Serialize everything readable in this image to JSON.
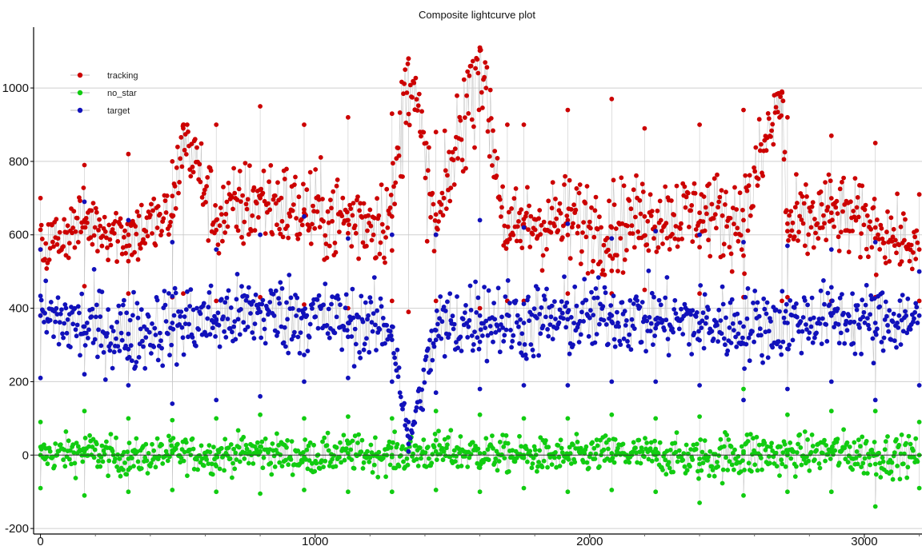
{
  "chart_data": {
    "type": "scatter",
    "title": "Composite lightcurve plot",
    "xlabel": "",
    "ylabel": "",
    "xlim": [
      -25,
      3210
    ],
    "ylim": [
      -215,
      1170
    ],
    "x_ticks": [
      0,
      1000,
      2000,
      3000
    ],
    "y_ticks": [
      -200,
      0,
      200,
      400,
      600,
      800,
      1000
    ],
    "grid": {
      "horizontal": true,
      "vertical": false
    },
    "zero_line": true,
    "connected_lines": true,
    "legend_position": "top-left",
    "series": [
      {
        "name": "tracking",
        "color": "#cc0000",
        "x": [
          0,
          160,
          320,
          480,
          520,
          640,
          800,
          960,
          1120,
          1280,
          1340,
          1440,
          1600,
          1700,
          1760,
          1920,
          2080,
          2200,
          2400,
          2560,
          2700,
          2720,
          2880,
          3040,
          3200
        ],
        "y": [
          560,
          640,
          600,
          650,
          890,
          640,
          700,
          660,
          640,
          650,
          1080,
          600,
          1110,
          580,
          630,
          640,
          620,
          650,
          660,
          640,
          990,
          610,
          660,
          620,
          560
        ],
        "y_low": [
          380,
          460,
          440,
          430,
          440,
          420,
          430,
          410,
          400,
          420,
          390,
          420,
          400,
          420,
          420,
          440,
          440,
          450,
          440,
          430,
          420,
          430,
          420,
          430,
          420
        ],
        "y_high": [
          700,
          790,
          820,
          800,
          900,
          900,
          950,
          900,
          920,
          930,
          1080,
          880,
          1110,
          900,
          900,
          940,
          970,
          890,
          900,
          940,
          990,
          920,
          870,
          850,
          710
        ]
      },
      {
        "name": "no_star",
        "color": "#11cc11",
        "x": [
          0,
          160,
          320,
          480,
          640,
          800,
          960,
          1120,
          1280,
          1440,
          1600,
          1760,
          1920,
          2080,
          2240,
          2400,
          2560,
          2720,
          2880,
          3040,
          3200
        ],
        "y": [
          0,
          10,
          -10,
          5,
          0,
          10,
          -5,
          5,
          0,
          10,
          5,
          0,
          -5,
          5,
          0,
          -10,
          5,
          0,
          10,
          0,
          0
        ],
        "y_low": [
          -90,
          -110,
          -100,
          -95,
          -100,
          -105,
          -95,
          -100,
          -100,
          -95,
          -100,
          -90,
          -100,
          -95,
          -100,
          -130,
          -110,
          -100,
          -100,
          -140,
          -90
        ],
        "y_high": [
          90,
          120,
          100,
          95,
          100,
          110,
          100,
          105,
          100,
          120,
          110,
          100,
          100,
          110,
          100,
          105,
          180,
          110,
          120,
          120,
          90
        ]
      },
      {
        "name": "target",
        "color": "#1111bb",
        "x": [
          0,
          160,
          320,
          480,
          640,
          800,
          960,
          1120,
          1280,
          1340,
          1440,
          1600,
          1760,
          1920,
          2080,
          2240,
          2400,
          2560,
          2720,
          2880,
          3040,
          3200
        ],
        "y": [
          380,
          350,
          330,
          360,
          370,
          390,
          380,
          360,
          350,
          30,
          340,
          380,
          360,
          370,
          380,
          370,
          360,
          350,
          360,
          380,
          360,
          380
        ],
        "y_low": [
          210,
          220,
          190,
          140,
          150,
          160,
          200,
          210,
          200,
          10,
          170,
          180,
          190,
          190,
          200,
          200,
          190,
          150,
          180,
          200,
          150,
          190
        ],
        "y_high": [
          560,
          690,
          640,
          580,
          560,
          600,
          650,
          590,
          600,
          90,
          600,
          640,
          620,
          630,
          590,
          610,
          600,
          580,
          570,
          560,
          580,
          500
        ]
      }
    ]
  }
}
